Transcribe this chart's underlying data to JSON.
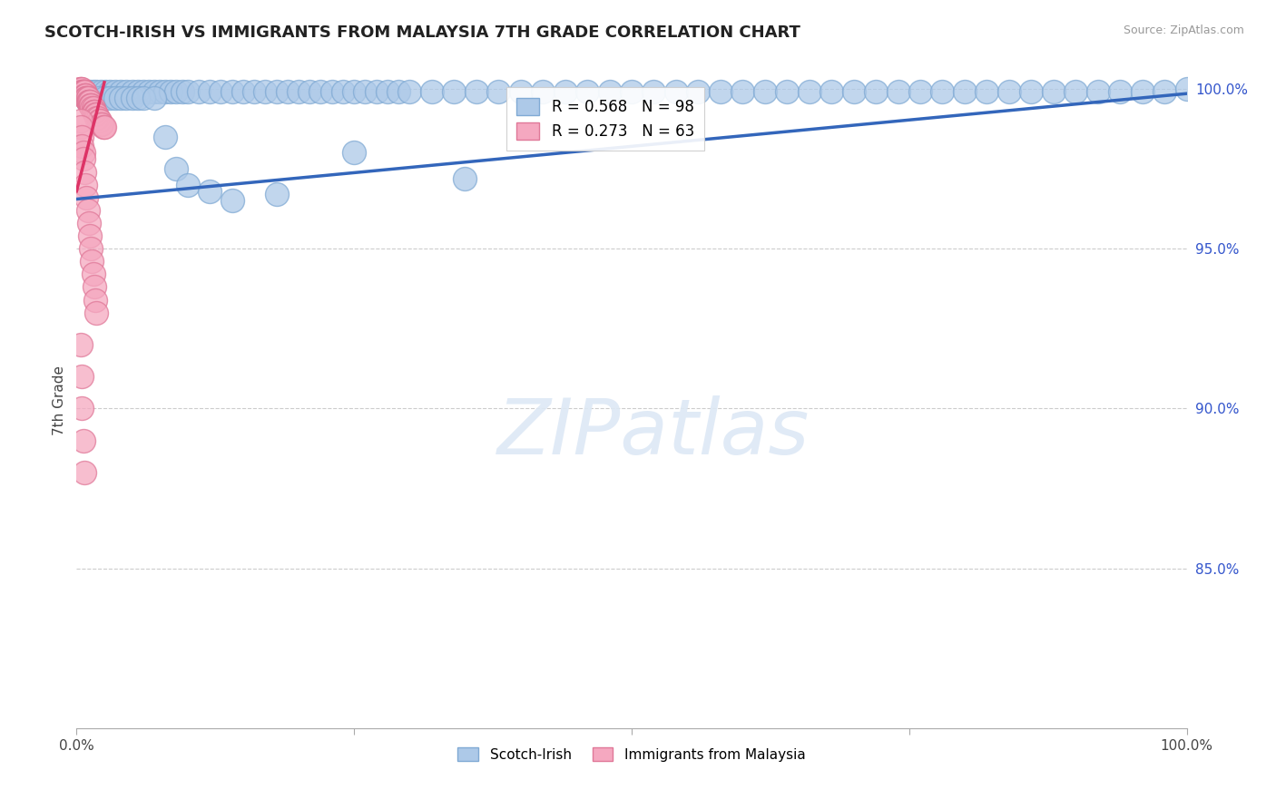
{
  "title": "SCOTCH-IRISH VS IMMIGRANTS FROM MALAYSIA 7TH GRADE CORRELATION CHART",
  "source_text": "Source: ZipAtlas.com",
  "ylabel": "7th Grade",
  "watermark_text": "ZIPatlas",
  "x_min": 0.0,
  "x_max": 1.0,
  "y_min": 0.8,
  "y_max": 1.005,
  "ytick_labels": [
    "85.0%",
    "90.0%",
    "95.0%",
    "100.0%"
  ],
  "ytick_values": [
    0.85,
    0.9,
    0.95,
    1.0
  ],
  "blue_R": 0.568,
  "blue_N": 98,
  "pink_R": 0.273,
  "pink_N": 63,
  "blue_color": "#adc9e8",
  "blue_edge_color": "#80aad4",
  "pink_color": "#f5a8c0",
  "pink_edge_color": "#e07898",
  "blue_line_color": "#3366bb",
  "pink_line_color": "#dd3366",
  "legend_label_blue": "Scotch-Irish",
  "legend_label_pink": "Immigrants from Malaysia",
  "blue_line_x0": 0.0,
  "blue_line_y0": 0.9655,
  "blue_line_x1": 1.0,
  "blue_line_y1": 0.9985,
  "pink_line_x0": 0.0,
  "pink_line_y0": 0.968,
  "pink_line_x1": 0.025,
  "pink_line_y1": 1.002,
  "blue_scatter_x": [
    0.005,
    0.007,
    0.009,
    0.012,
    0.015,
    0.018,
    0.022,
    0.026,
    0.03,
    0.035,
    0.04,
    0.045,
    0.05,
    0.055,
    0.06,
    0.065,
    0.07,
    0.075,
    0.08,
    0.085,
    0.09,
    0.095,
    0.1,
    0.11,
    0.12,
    0.13,
    0.14,
    0.15,
    0.16,
    0.17,
    0.18,
    0.19,
    0.2,
    0.21,
    0.22,
    0.23,
    0.24,
    0.25,
    0.26,
    0.27,
    0.28,
    0.29,
    0.3,
    0.32,
    0.34,
    0.36,
    0.38,
    0.4,
    0.42,
    0.44,
    0.46,
    0.48,
    0.5,
    0.52,
    0.54,
    0.56,
    0.58,
    0.6,
    0.62,
    0.64,
    0.66,
    0.68,
    0.7,
    0.72,
    0.74,
    0.76,
    0.78,
    0.8,
    0.82,
    0.84,
    0.86,
    0.88,
    0.9,
    0.92,
    0.94,
    0.96,
    0.98,
    1.0,
    0.01,
    0.015,
    0.02,
    0.025,
    0.03,
    0.035,
    0.04,
    0.045,
    0.05,
    0.055,
    0.06,
    0.07,
    0.08,
    0.09,
    0.1,
    0.12,
    0.14,
    0.18,
    0.25,
    0.35
  ],
  "blue_scatter_y": [
    0.999,
    0.999,
    0.999,
    0.999,
    0.999,
    0.999,
    0.999,
    0.999,
    0.999,
    0.999,
    0.999,
    0.999,
    0.999,
    0.999,
    0.999,
    0.999,
    0.999,
    0.999,
    0.999,
    0.999,
    0.999,
    0.999,
    0.999,
    0.999,
    0.999,
    0.999,
    0.999,
    0.999,
    0.999,
    0.999,
    0.999,
    0.999,
    0.999,
    0.999,
    0.999,
    0.999,
    0.999,
    0.999,
    0.999,
    0.999,
    0.999,
    0.999,
    0.999,
    0.999,
    0.999,
    0.999,
    0.999,
    0.999,
    0.999,
    0.999,
    0.999,
    0.999,
    0.999,
    0.999,
    0.999,
    0.999,
    0.999,
    0.999,
    0.999,
    0.999,
    0.999,
    0.999,
    0.999,
    0.999,
    0.999,
    0.999,
    0.999,
    0.999,
    0.999,
    0.999,
    0.999,
    0.999,
    0.999,
    0.999,
    0.999,
    0.999,
    0.999,
    1.0,
    0.996,
    0.996,
    0.997,
    0.997,
    0.997,
    0.997,
    0.997,
    0.997,
    0.997,
    0.997,
    0.997,
    0.997,
    0.985,
    0.975,
    0.97,
    0.968,
    0.965,
    0.967,
    0.98,
    0.972
  ],
  "pink_scatter_x": [
    0.003,
    0.004,
    0.005,
    0.005,
    0.005,
    0.006,
    0.006,
    0.007,
    0.007,
    0.007,
    0.007,
    0.008,
    0.008,
    0.008,
    0.009,
    0.009,
    0.01,
    0.01,
    0.01,
    0.011,
    0.011,
    0.012,
    0.012,
    0.013,
    0.013,
    0.014,
    0.015,
    0.015,
    0.016,
    0.016,
    0.017,
    0.018,
    0.018,
    0.019,
    0.02,
    0.021,
    0.022,
    0.023,
    0.024,
    0.025,
    0.004,
    0.004,
    0.005,
    0.005,
    0.006,
    0.006,
    0.007,
    0.008,
    0.009,
    0.01,
    0.011,
    0.012,
    0.013,
    0.014,
    0.015,
    0.016,
    0.017,
    0.018,
    0.004,
    0.005,
    0.005,
    0.006,
    0.007
  ],
  "pink_scatter_y": [
    1.0,
    1.0,
    1.0,
    0.999,
    0.999,
    0.999,
    0.999,
    0.999,
    0.999,
    0.999,
    0.998,
    0.998,
    0.998,
    0.997,
    0.997,
    0.997,
    0.997,
    0.997,
    0.996,
    0.996,
    0.996,
    0.996,
    0.995,
    0.995,
    0.995,
    0.994,
    0.994,
    0.993,
    0.993,
    0.993,
    0.992,
    0.992,
    0.991,
    0.991,
    0.99,
    0.99,
    0.989,
    0.989,
    0.988,
    0.988,
    0.99,
    0.988,
    0.985,
    0.982,
    0.98,
    0.978,
    0.974,
    0.97,
    0.966,
    0.962,
    0.958,
    0.954,
    0.95,
    0.946,
    0.942,
    0.938,
    0.934,
    0.93,
    0.92,
    0.91,
    0.9,
    0.89,
    0.88
  ]
}
